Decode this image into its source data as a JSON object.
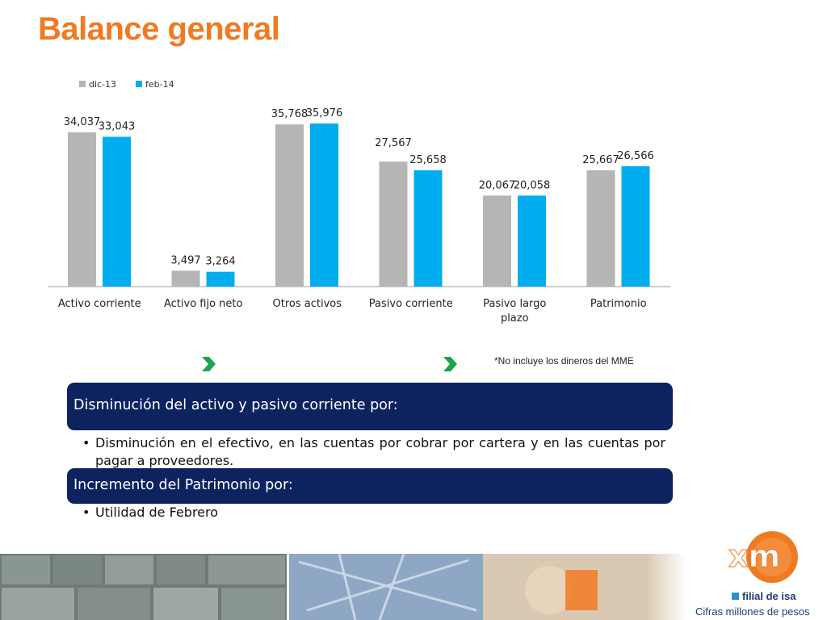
{
  "title": "Balance general",
  "chart_data": {
    "type": "bar",
    "categories": [
      "Activo corriente",
      "Activo fijo neto",
      "Otros activos",
      "Pasivo corriente",
      "Pasivo largo plazo",
      "Patrimonio"
    ],
    "series": [
      {
        "name": "dic-13",
        "values": [
          34037,
          3497,
          35768,
          27567,
          20067,
          25667
        ],
        "labels": [
          "34,037",
          "3,497",
          "35,768",
          "27,567",
          "20,067",
          "25,667"
        ],
        "color": "#b5b5b5"
      },
      {
        "name": "feb-14",
        "values": [
          33043,
          3264,
          35976,
          25658,
          20058,
          26566
        ],
        "labels": [
          "33,043",
          "3,264",
          "35,976",
          "25,658",
          "20,058",
          "26,566"
        ],
        "color": "#00adef"
      }
    ],
    "ylim": [
      0,
      36500
    ],
    "legend": "top-left",
    "grid": false
  },
  "note": "*No incluye los dineros del MME",
  "section1": {
    "heading": "Disminución del activo y pasivo corriente por:",
    "bullet": "Disminución en el efectivo, en las cuentas por cobrar por cartera y en las cuentas por pagar a proveedores."
  },
  "section2": {
    "heading": "Incremento del Patrimonio por:",
    "bullet": "Utilidad de Febrero"
  },
  "footer": {
    "logo_text": "xm",
    "filial": "filial de isa",
    "cifras": "Cifras millones de pesos"
  },
  "colors": {
    "title": "#f07a22",
    "box": "#0d2360",
    "series1": "#b5b5b5",
    "series2": "#00adef",
    "chevron": "#1aa54a",
    "logo": "#f07a22"
  },
  "icons": {
    "chevron": "chevron-right-icon",
    "photos": "photo-strip"
  }
}
